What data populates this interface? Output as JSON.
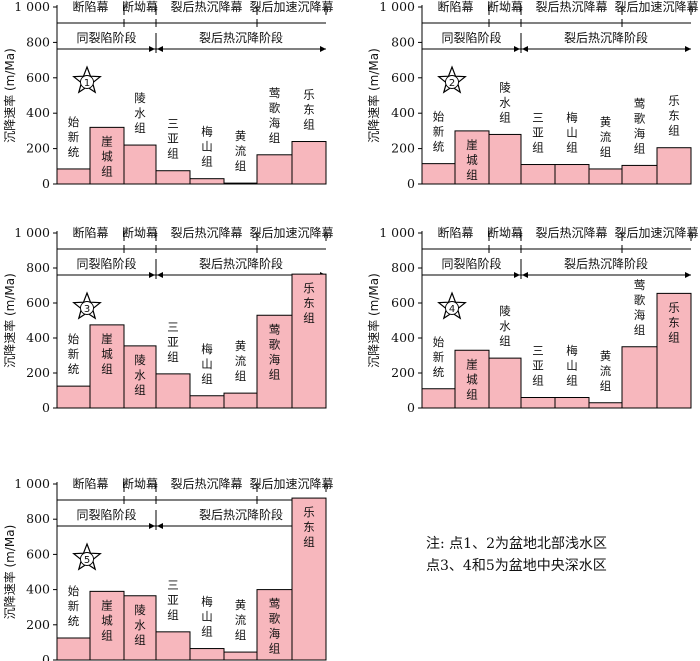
{
  "colors": {
    "bar_fill": "#f7b7bd",
    "bar_stroke": "#000000",
    "axis": "#000000",
    "text": "#111111"
  },
  "common": {
    "ylabel": "沉降速率 (m/Ma)",
    "yticks": [
      "0",
      "200",
      "400",
      "600",
      "800",
      "1 000"
    ],
    "ylim": [
      0,
      1000
    ],
    "phase_labels": [
      "断陷幕",
      "断坳幕",
      "裂后热沉降幕",
      "裂后加速沉降幕"
    ],
    "stage_labels": [
      "同裂陷阶段",
      "裂后热沉降阶段"
    ]
  },
  "note": {
    "line1": "注: 点1、2为盆地北部浅水区",
    "line2": "点3、4和5为盆地中央深水区"
  },
  "chart_data": [
    {
      "type": "bar",
      "marker": "1",
      "ylim": [
        0,
        1000
      ],
      "categories": [
        "始新统",
        "崖城组",
        "陵水组",
        "三亚组",
        "梅山组",
        "黄流组",
        "莺歌海组",
        "乐东组"
      ],
      "values": [
        85,
        320,
        220,
        75,
        30,
        5,
        165,
        240
      ]
    },
    {
      "type": "bar",
      "marker": "2",
      "ylim": [
        0,
        1000
      ],
      "categories": [
        "始新统",
        "崖城组",
        "陵水组",
        "三亚组",
        "梅山组",
        "黄流组",
        "莺歌海组",
        "乐东组"
      ],
      "values": [
        115,
        300,
        280,
        110,
        110,
        85,
        105,
        205
      ]
    },
    {
      "type": "bar",
      "marker": "3",
      "ylim": [
        0,
        1000
      ],
      "categories": [
        "始新统",
        "崖城组",
        "陵水组",
        "三亚组",
        "梅山组",
        "黄流组",
        "莺歌海组",
        "乐东组"
      ],
      "values": [
        125,
        475,
        355,
        195,
        70,
        85,
        530,
        765
      ]
    },
    {
      "type": "bar",
      "marker": "4",
      "ylim": [
        0,
        1000
      ],
      "categories": [
        "始新统",
        "崖城组",
        "陵水组",
        "三亚组",
        "梅山组",
        "黄流组",
        "莺歌海组",
        "乐东组"
      ],
      "values": [
        110,
        330,
        285,
        60,
        60,
        30,
        350,
        655
      ]
    },
    {
      "type": "bar",
      "marker": "5",
      "ylim": [
        0,
        1000
      ],
      "categories": [
        "始新统",
        "崖城组",
        "陵水组",
        "三亚组",
        "梅山组",
        "黄流组",
        "莺歌海组",
        "乐东组"
      ],
      "values": [
        125,
        390,
        365,
        160,
        65,
        45,
        400,
        920
      ]
    }
  ]
}
